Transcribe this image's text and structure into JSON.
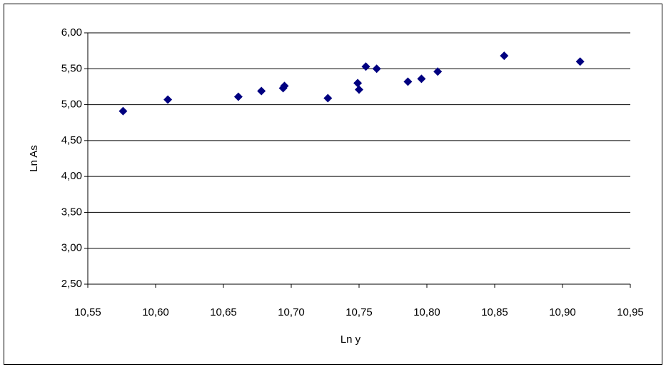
{
  "chart_data": {
    "type": "scatter",
    "x_label": "Ln y",
    "y_label": "Ln As",
    "x": [
      10.576,
      10.609,
      10.661,
      10.678,
      10.694,
      10.695,
      10.727,
      10.749,
      10.75,
      10.755,
      10.763,
      10.786,
      10.796,
      10.808,
      10.857,
      10.913
    ],
    "values": [
      4.91,
      5.07,
      5.11,
      5.19,
      5.23,
      5.26,
      5.09,
      5.3,
      5.21,
      5.53,
      5.5,
      5.32,
      5.36,
      5.46,
      5.68,
      5.6
    ],
    "color": "#000080",
    "xlim": [
      10.55,
      10.95
    ],
    "xticks": [
      {
        "value": 10.55,
        "label": "10,55"
      },
      {
        "value": 10.6,
        "label": "10,60"
      },
      {
        "value": 10.65,
        "label": "10,65"
      },
      {
        "value": 10.7,
        "label": "10,70"
      },
      {
        "value": 10.75,
        "label": "10,75"
      },
      {
        "value": 10.8,
        "label": "10,80"
      },
      {
        "value": 10.85,
        "label": "10,85"
      },
      {
        "value": 10.9,
        "label": "10,90"
      },
      {
        "value": 10.95,
        "label": "10,95"
      }
    ],
    "ylim": [
      2.5,
      6.0
    ],
    "yticks": [
      {
        "value": 2.5,
        "label": "2,50"
      },
      {
        "value": 3.0,
        "label": "3,00"
      },
      {
        "value": 3.5,
        "label": "3,50"
      },
      {
        "value": 4.0,
        "label": "4,00"
      },
      {
        "value": 4.5,
        "label": "4,50"
      },
      {
        "value": 5.0,
        "label": "5,00"
      },
      {
        "value": 5.5,
        "label": "5,50"
      },
      {
        "value": 6.0,
        "label": "6,00"
      }
    ],
    "grid": true
  }
}
